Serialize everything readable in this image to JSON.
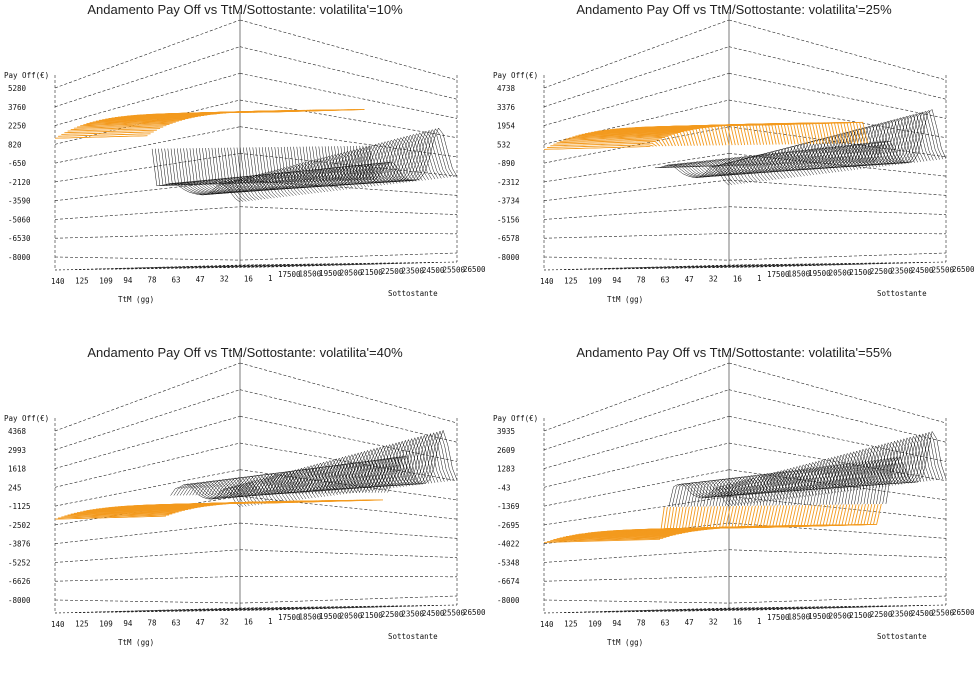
{
  "chart_data": [
    {
      "type": "surface3d",
      "title": "Andamento Pay Off vs TtM/Sottostante: volatilita'=10%",
      "zlabel": "Pay Off(€)",
      "xlabel": "TtM (gg)",
      "ylabel": "Sottostante",
      "zticks": [
        "5280",
        "3760",
        "2250",
        "820",
        "-650",
        "-2120",
        "-3590",
        "-5060",
        "-6530",
        "-8000"
      ],
      "xticks": [
        "140",
        "125",
        "109",
        "94",
        "78",
        "63",
        "47",
        "32",
        "16",
        "1"
      ],
      "yticks": [
        "17500",
        "18500",
        "19500",
        "20500",
        "21500",
        "22500",
        "23500",
        "24500",
        "25500",
        "26500"
      ],
      "zlim": [
        -8000,
        5280
      ],
      "surface": {
        "plateau": 3500,
        "cliff": 0.52,
        "peak1": 1500,
        "peak2": 3900,
        "valley": -1900,
        "min": -8000
      }
    },
    {
      "type": "surface3d",
      "title": "Andamento Pay Off vs TtM/Sottostante: volatilita'=25%",
      "zlabel": "Pay Off(€)",
      "xlabel": "TtM (gg)",
      "ylabel": "Sottostante",
      "zticks": [
        "4738",
        "3376",
        "1954",
        "532",
        "-890",
        "-2312",
        "-3734",
        "-5156",
        "-6578",
        "-8000"
      ],
      "xticks": [
        "140",
        "125",
        "109",
        "94",
        "78",
        "63",
        "47",
        "32",
        "16",
        "1"
      ],
      "yticks": [
        "17500",
        "18500",
        "19500",
        "20500",
        "21500",
        "22500",
        "23500",
        "24500",
        "25500",
        "26500"
      ],
      "zlim": [
        -8000,
        4738
      ],
      "surface": {
        "plateau": 2100,
        "cliff": 0.58,
        "peak1": 1700,
        "peak2": 3900,
        "valley": -900,
        "min": -8000
      }
    },
    {
      "type": "surface3d",
      "title": "Andamento Pay Off vs TtM/Sottostante: volatilita'=40%",
      "zlabel": "Pay Off(€)",
      "xlabel": "TtM (gg)",
      "ylabel": "Sottostante",
      "zticks": [
        "4368",
        "2993",
        "1618",
        "245",
        "-1125",
        "-2502",
        "-3876",
        "-5252",
        "-6626",
        "-8000"
      ],
      "xticks": [
        "140",
        "125",
        "109",
        "94",
        "78",
        "63",
        "47",
        "32",
        "16",
        "1"
      ],
      "yticks": [
        "17500",
        "18500",
        "19500",
        "20500",
        "21500",
        "22500",
        "23500",
        "24500",
        "25500",
        "26500"
      ],
      "zlim": [
        -8000,
        4368
      ],
      "surface": {
        "plateau": -600,
        "cliff": 0.62,
        "peak1": 2100,
        "peak2": 3700,
        "valley": 400,
        "min": -6700
      }
    },
    {
      "type": "surface3d",
      "title": "Andamento Pay Off vs TtM/Sottostante: volatilita'=55%",
      "zlabel": "Pay Off(€)",
      "xlabel": "TtM (gg)",
      "ylabel": "Sottostante",
      "zticks": [
        "3935",
        "2609",
        "1283",
        "-43",
        "-1369",
        "-2695",
        "-4022",
        "-5348",
        "-6674",
        "-8000"
      ],
      "xticks": [
        "140",
        "125",
        "109",
        "94",
        "78",
        "63",
        "47",
        "32",
        "16",
        "1"
      ],
      "yticks": [
        "17500",
        "18500",
        "19500",
        "20500",
        "21500",
        "22500",
        "23500",
        "24500",
        "25500",
        "26500"
      ],
      "zlim": [
        -8000,
        3935
      ],
      "surface": {
        "plateau": -2500,
        "cliff": 0.66,
        "peak1": 1800,
        "peak2": 3500,
        "valley": 200,
        "min": -7800
      }
    }
  ],
  "colors": {
    "surface_front": "#f39a1e",
    "surface_back": "#111111",
    "grid": "#222222",
    "background": "#ffffff"
  }
}
